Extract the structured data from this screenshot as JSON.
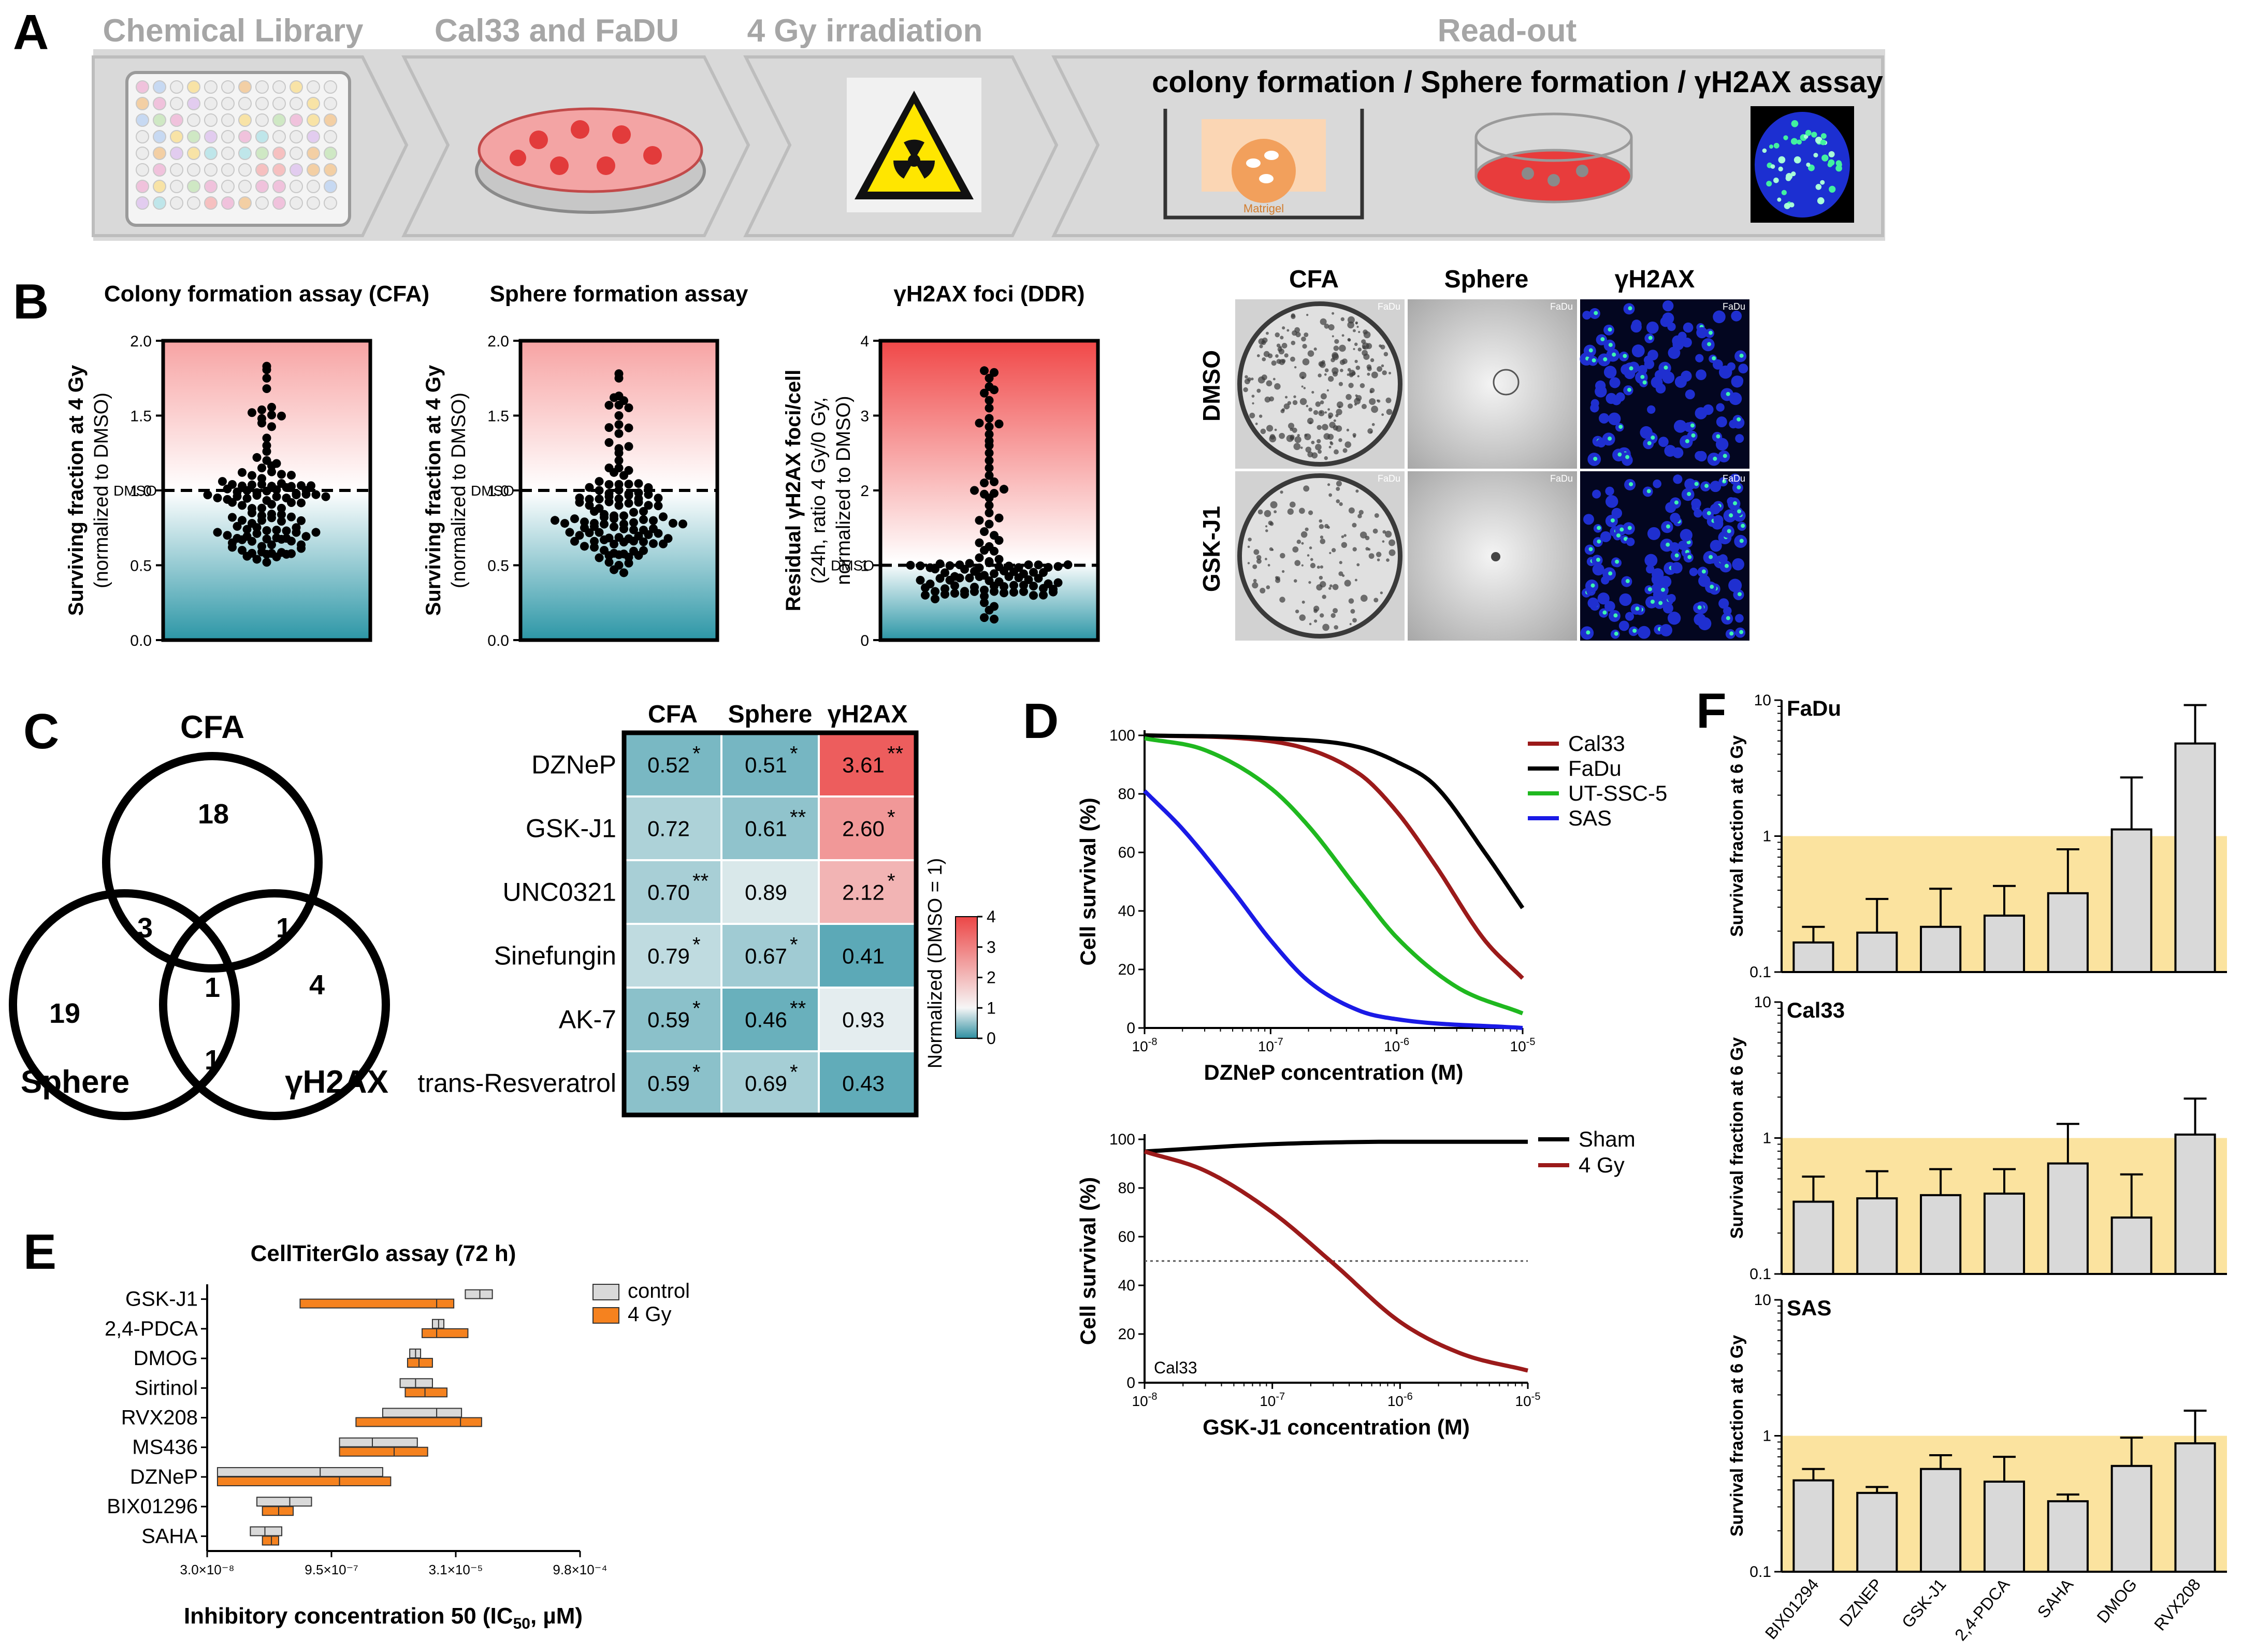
{
  "panel_letters": [
    "A",
    "B",
    "C",
    "D",
    "E",
    "F"
  ],
  "panelA": {
    "steps": [
      "Chemical Library",
      "Cal33 and FaDU",
      "4 Gy irradiation",
      "Read-out"
    ],
    "readout_subtitle": "colony formation / Sphere formation / γH2AX assay",
    "matrigel_label": "Matrigel",
    "icons": [
      "well-plate-icon",
      "petri-dish-icon",
      "radiation-warning-icon",
      "transwell-icon",
      "sphere-dish-icon",
      "nucleus-icon"
    ],
    "colors": {
      "arrow": "#d9d9d9",
      "step_text": "#a6a6a6",
      "warning": "#ffe600"
    }
  },
  "panelB_micro": {
    "col_headers": [
      "CFA",
      "Sphere",
      "γH2AX"
    ],
    "row_headers": [
      "DMSO",
      "GSK-J1"
    ],
    "cell_tag": "FaDu"
  },
  "panelC_venn": {
    "labels": [
      "CFA",
      "Sphere",
      "γH2AX"
    ],
    "counts": {
      "cfa_only": "18",
      "sphere_only": "19",
      "h2ax_only": "4",
      "cfa_sphere": "3",
      "cfa_h2ax": "1",
      "sphere_h2ax": "1",
      "all": "1"
    }
  },
  "chart_data": [
    {
      "panel": "B",
      "type": "scatter",
      "title": "Colony formation assay (CFA)",
      "ylabel": "Surviving fraction at 4 Gy",
      "ylabel2": "(normalized to DMSO)",
      "ylim": [
        0,
        2.0
      ],
      "yticks": [
        "0.0",
        "0.5",
        "1.0",
        "1.5",
        "2.0"
      ],
      "reference_line": {
        "y": 1.0,
        "label": "DMSO"
      },
      "background": {
        "top": "#f7a3a3",
        "bottom": "#2c96a6"
      },
      "n_points": 118,
      "range": [
        0.52,
        1.83
      ],
      "values": [
        1.83,
        1.75,
        1.68,
        1.52,
        1.48,
        1.45,
        1.35,
        1.3,
        1.22,
        1.2,
        1.18,
        1.15,
        1.12,
        1.1,
        1.08,
        1.06,
        1.04,
        1.03,
        1.01,
        0.99,
        0.97,
        0.95,
        0.94,
        0.92,
        0.9,
        0.88,
        0.85,
        0.82,
        0.8,
        0.78,
        0.76,
        0.74,
        0.72,
        0.7,
        0.68,
        0.65,
        0.62,
        0.6,
        0.58,
        0.56,
        0.54,
        0.52
      ]
    },
    {
      "panel": "B",
      "type": "scatter",
      "title": "Sphere formation assay",
      "ylabel": "Surviving fraction at 4 Gy",
      "ylabel2": "(normalized to DMSO)",
      "ylim": [
        0,
        2.0
      ],
      "yticks": [
        "0.0",
        "0.5",
        "1.0",
        "1.5",
        "2.0"
      ],
      "reference_line": {
        "y": 1.0,
        "label": "DMSO"
      },
      "background": {
        "top": "#f7a3a3",
        "bottom": "#2c96a6"
      },
      "n_points": 118,
      "range": [
        0.45,
        1.78
      ],
      "values": [
        1.78,
        1.75,
        1.62,
        1.6,
        1.5,
        1.42,
        1.38,
        1.32,
        1.28,
        1.25,
        1.2,
        1.15,
        1.12,
        1.1,
        1.06,
        1.04,
        1.02,
        1.0,
        0.98,
        0.95,
        0.92,
        0.9,
        0.88,
        0.86,
        0.84,
        0.8,
        0.78,
        0.75,
        0.72,
        0.7,
        0.66,
        0.62,
        0.6,
        0.58,
        0.55,
        0.52,
        0.5,
        0.47,
        0.45
      ]
    },
    {
      "panel": "B",
      "type": "scatter",
      "title": "γH2AX foci (DDR)",
      "ylabel": "Residual γH2AX foci/cell",
      "ylabel2": "(24h, ratio 4 Gy/0 Gy,",
      "ylabel3": "normalized to DMSO)",
      "ylim": [
        0,
        4
      ],
      "yticks": [
        "0",
        "1",
        "2",
        "3",
        "4"
      ],
      "reference_line": {
        "y": 1.0,
        "label": "DMSO"
      },
      "background": {
        "top": "#f04848",
        "bottom": "#2c96a6"
      },
      "n_points": 118,
      "range": [
        0.28,
        3.6
      ],
      "values": [
        3.6,
        3.5,
        3.3,
        3.1,
        2.9,
        2.85,
        2.75,
        2.6,
        2.5,
        2.4,
        2.3,
        2.2,
        2.1,
        2.0,
        1.95,
        1.9,
        1.8,
        1.7,
        1.6,
        1.55,
        1.45,
        1.4,
        1.3,
        1.25,
        1.2,
        1.1,
        1.05,
        1.0,
        0.95,
        0.9,
        0.85,
        0.8,
        0.75,
        0.7,
        0.65,
        0.6,
        0.55,
        0.5,
        0.45,
        0.4,
        0.3,
        0.28
      ]
    },
    {
      "panel": "C",
      "type": "heatmap",
      "columns": [
        "CFA",
        "Sphere",
        "γH2AX"
      ],
      "rows": [
        "DZNeP",
        "GSK-J1",
        "UNC0321",
        "Sinefungin",
        "AK-7",
        "trans-Resveratrol"
      ],
      "values": [
        [
          0.52,
          0.51,
          3.61
        ],
        [
          0.72,
          0.61,
          2.6
        ],
        [
          0.7,
          0.89,
          2.12
        ],
        [
          0.79,
          0.67,
          0.41
        ],
        [
          0.59,
          0.46,
          0.93
        ],
        [
          0.59,
          0.69,
          0.43
        ]
      ],
      "labels": [
        [
          "0.52",
          "0.51",
          "3.61"
        ],
        [
          "0.72",
          "0.61",
          "2.60"
        ],
        [
          "0.70",
          "0.89",
          "2.12"
        ],
        [
          "0.79",
          "0.67",
          "0.41"
        ],
        [
          "0.59",
          "0.46",
          "0.93"
        ],
        [
          "0.59",
          "0.69",
          "0.43"
        ]
      ],
      "stars": [
        [
          "*",
          "*",
          "**"
        ],
        [
          "",
          "**",
          "*"
        ],
        [
          "**",
          "",
          "*"
        ],
        [
          "*",
          "*",
          ""
        ],
        [
          "*",
          "**",
          ""
        ],
        [
          "*",
          "*",
          ""
        ]
      ],
      "colorbar": {
        "label": "Normalized (DMSO = 1)",
        "ticks": [
          "0",
          "1",
          "2",
          "3",
          "4"
        ],
        "range": [
          0,
          4
        ]
      },
      "colors": {
        "low": "#3f9bab",
        "mid": "#f6f6f6",
        "high": "#ec4646"
      }
    },
    {
      "panel": "D",
      "type": "line",
      "xlabel": "DZNeP concentration (M)",
      "ylabel": "Cell survival (%)",
      "x_scale": "log",
      "xlim": [
        1e-08,
        1e-05
      ],
      "ylim": [
        0,
        100
      ],
      "xticks": [
        {
          "b": "10",
          "e": "-8"
        },
        {
          "b": "10",
          "e": "-7"
        },
        {
          "b": "10",
          "e": "-6"
        },
        {
          "b": "10",
          "e": "-5"
        }
      ],
      "yticks": [
        "0",
        "20",
        "40",
        "60",
        "80",
        "100"
      ],
      "series": [
        {
          "name": "Cal33",
          "color": "#9b1a1a",
          "x": [
            1e-08,
            1e-07,
            5e-07,
            1e-06,
            2e-06,
            5e-06,
            1e-05
          ],
          "y": [
            100,
            98,
            87,
            74,
            56,
            30,
            17
          ]
        },
        {
          "name": "FaDu",
          "color": "#000000",
          "x": [
            1e-08,
            1e-07,
            5e-07,
            1e-06,
            2e-06,
            5e-06,
            1e-05
          ],
          "y": [
            100,
            99,
            96,
            91,
            83,
            60,
            41
          ]
        },
        {
          "name": "UT-SSC-5",
          "color": "#1fb81f",
          "x": [
            1e-08,
            3e-08,
            1e-07,
            2e-07,
            5e-07,
            1e-06,
            3e-06,
            1e-05
          ],
          "y": [
            99,
            95,
            82,
            69,
            47,
            31,
            14,
            5
          ]
        },
        {
          "name": "SAS",
          "color": "#1a1ae6",
          "x": [
            1e-08,
            2e-08,
            5e-08,
            1e-07,
            2e-07,
            5e-07,
            1e-06,
            1e-05
          ],
          "y": [
            81,
            68,
            47,
            30,
            16,
            6,
            3,
            0
          ]
        }
      ]
    },
    {
      "panel": "D",
      "type": "line",
      "xlabel": "GSK-J1 concentration (M)",
      "ylabel": "Cell survival (%)",
      "annotation": "Cal33",
      "x_scale": "log",
      "xlim": [
        1e-08,
        1e-05
      ],
      "ylim": [
        0,
        100
      ],
      "xticks": [
        {
          "b": "10",
          "e": "-8"
        },
        {
          "b": "10",
          "e": "-7"
        },
        {
          "b": "10",
          "e": "-6"
        },
        {
          "b": "10",
          "e": "-5"
        }
      ],
      "yticks": [
        "0",
        "20",
        "40",
        "60",
        "80",
        "100"
      ],
      "reference_line": {
        "y": 50
      },
      "series": [
        {
          "name": "Sham",
          "color": "#000000",
          "x": [
            1e-08,
            1e-07,
            1e-06,
            1e-05
          ],
          "y": [
            95,
            98,
            99,
            99
          ]
        },
        {
          "name": "4 Gy",
          "color": "#9b1a1a",
          "x": [
            1e-08,
            3e-08,
            1e-07,
            3e-07,
            1e-06,
            3e-06,
            1e-05
          ],
          "y": [
            95,
            87,
            70,
            49,
            25,
            12,
            5
          ]
        }
      ]
    },
    {
      "panel": "E",
      "type": "bar",
      "title": "CellTiterGlo assay (72 h)",
      "xlabel": "Inhibitory concentration 50 (IC",
      "xlabel_sub": "50",
      "xlabel_tail": ", µM)",
      "x_scale": "log",
      "xlim": [
        3e-08,
        0.00098
      ],
      "xticks": [
        "3.0×10⁻⁸",
        "9.5×10⁻⁷",
        "3.1×10⁻⁵",
        "9.8×10⁻⁴"
      ],
      "categories": [
        "GSK-J1",
        "2,4-PDCA",
        "DMOG",
        "Sirtinol",
        "RVX208",
        "MS436",
        "DZNeP",
        "BIX01296",
        "SAHA"
      ],
      "series": [
        {
          "name": "control",
          "color": "#d9d9d9",
          "low": [
            4e-05,
            1.6e-05,
            8.5e-06,
            6.5e-06,
            4e-06,
            1.2e-06,
            4e-08,
            1.2e-07,
            1e-07
          ],
          "mid": [
            6e-05,
            1.9e-05,
            1e-05,
            1e-05,
            1.8e-05,
            3e-06,
            7e-07,
            3e-07,
            1.5e-07
          ],
          "high": [
            8.5e-05,
            2.2e-05,
            1.15e-05,
            1.6e-05,
            3.6e-05,
            1.05e-05,
            4e-06,
            5.5e-07,
            2.4e-07
          ]
        },
        {
          "name": "4 Gy",
          "color": "#f5821f",
          "low": [
            4e-07,
            1.2e-05,
            8e-06,
            7.5e-06,
            1.9e-06,
            1.2e-06,
            4e-08,
            1.4e-07,
            1.4e-07
          ],
          "mid": [
            1.8e-05,
            1.8e-05,
            1.1e-05,
            1.3e-05,
            3.5e-05,
            5.5e-06,
            1.2e-06,
            2.2e-07,
            1.8e-07
          ],
          "high": [
            2.9e-05,
            4.3e-05,
            1.6e-05,
            2.4e-05,
            6.3e-05,
            1.4e-05,
            5e-06,
            3.3e-07,
            2.2e-07
          ]
        }
      ]
    },
    {
      "panel": "F",
      "type": "bar",
      "title": "FaDu",
      "ylabel": "Survival fraction at 6 Gy",
      "y_scale": "log",
      "ylim": [
        0.1,
        10
      ],
      "yticks": [
        "0.1",
        "1",
        "10"
      ],
      "shaded_region": {
        "from": 0.1,
        "to": 1.0,
        "color": "#fbe39f"
      },
      "categories": [
        "BIX01294",
        "DZNEP",
        "GSK-J1",
        "2,4-PDCA",
        "SAHA",
        "DMOG",
        "RVX208"
      ],
      "values": [
        0.165,
        0.195,
        0.215,
        0.26,
        0.38,
        1.12,
        4.8
      ],
      "errors": [
        0.215,
        0.345,
        0.41,
        0.43,
        0.8,
        2.7,
        9.2
      ]
    },
    {
      "panel": "F",
      "type": "bar",
      "title": "Cal33",
      "ylabel": "Survival fraction at 6 Gy",
      "y_scale": "log",
      "ylim": [
        0.1,
        10
      ],
      "yticks": [
        "0.1",
        "1",
        "10"
      ],
      "shaded_region": {
        "from": 0.1,
        "to": 1.0,
        "color": "#fbe39f"
      },
      "categories": [
        "BIX01294",
        "DZNEP",
        "GSK-J1",
        "2,4-PDCA",
        "SAHA",
        "DMOG",
        "RVX208"
      ],
      "values": [
        0.34,
        0.36,
        0.38,
        0.39,
        0.65,
        0.26,
        1.06
      ],
      "errors": [
        0.52,
        0.57,
        0.59,
        0.59,
        1.27,
        0.54,
        1.95
      ]
    },
    {
      "panel": "F",
      "type": "bar",
      "title": "SAS",
      "ylabel": "Survival fraction at 6 Gy",
      "y_scale": "log",
      "ylim": [
        0.1,
        10
      ],
      "yticks": [
        "0.1",
        "1",
        "10"
      ],
      "shaded_region": {
        "from": 0.1,
        "to": 1.0,
        "color": "#fbe39f"
      },
      "categories": [
        "BIX01294",
        "DZNEP",
        "GSK-J1",
        "2,4-PDCA",
        "SAHA",
        "DMOG",
        "RVX208"
      ],
      "values": [
        0.47,
        0.38,
        0.57,
        0.46,
        0.33,
        0.6,
        0.88
      ],
      "errors": [
        0.57,
        0.42,
        0.72,
        0.7,
        0.37,
        0.97,
        1.53
      ]
    }
  ]
}
